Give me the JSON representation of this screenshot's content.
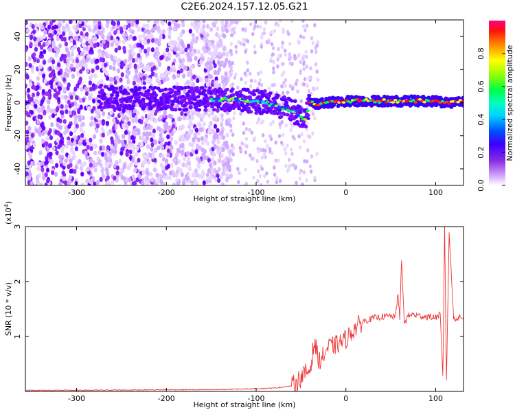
{
  "title": "C2E6.2024.157.12.05.G21",
  "chart_data": [
    {
      "type": "heatmap",
      "xlabel": "Height of straight line (km)",
      "ylabel": "Frequency (Hz)",
      "xlim": [
        -357,
        131
      ],
      "ylim": [
        -50,
        50
      ],
      "xticks": [
        -300,
        -200,
        -100,
        0,
        100
      ],
      "yticks": [
        -40,
        -20,
        0,
        20,
        40
      ],
      "colorbar": {
        "label": "Normalized spectral amplitude",
        "range": [
          0,
          1
        ],
        "ticks": [
          "0.0",
          "0.2",
          "0.4",
          "0.6",
          "0.8"
        ],
        "colormap": [
          "#ffffff",
          "#d9b3ff",
          "#8a2be2",
          "#6a00ff",
          "#0000ff",
          "#00bfff",
          "#00ffcc",
          "#00ff00",
          "#ffff00",
          "#ff8000",
          "#ff0000",
          "#ff0066"
        ]
      },
      "ridge": {
        "x": [
          -270,
          -250,
          -200,
          -160,
          -120,
          -90,
          -70,
          -55,
          -45,
          -40,
          -30,
          -20,
          0,
          50,
          100,
          115,
          131
        ],
        "frequency": [
          4,
          2,
          3,
          2,
          2,
          0,
          -3,
          -6,
          -10,
          0,
          -1,
          0,
          1,
          1,
          1,
          0,
          1
        ]
      }
    },
    {
      "type": "line",
      "xlabel": "Height of straight line (km)",
      "ylabel": "SNR (10 * v/v)",
      "y_scale_label": "(x10",
      "y_scale_exp": "4",
      "y_scale_close": ")",
      "xlim": [
        -357,
        131
      ],
      "ylim": [
        0,
        3
      ],
      "xticks": [
        -300,
        -200,
        -100,
        0,
        100
      ],
      "yticks": [
        1,
        2,
        3
      ],
      "color": "#ee3333",
      "series": [
        {
          "x": [
            -357,
            -300,
            -200,
            -150,
            -100,
            -80,
            -60,
            -50,
            -40,
            -35,
            -30,
            -25,
            -20,
            -10,
            0,
            10,
            20,
            30,
            40,
            50,
            55,
            58,
            60,
            62,
            65,
            70,
            75,
            80,
            90,
            100,
            105,
            108,
            110,
            112,
            115,
            120,
            131
          ],
          "y": [
            0.02,
            0.02,
            0.03,
            0.03,
            0.05,
            0.06,
            0.1,
            0.25,
            0.4,
            0.9,
            0.55,
            0.65,
            0.8,
            0.85,
            0.95,
            1.15,
            1.28,
            1.33,
            1.36,
            1.37,
            1.35,
            1.8,
            1.3,
            2.4,
            1.25,
            1.38,
            1.4,
            1.38,
            1.36,
            1.35,
            1.4,
            0.25,
            3.05,
            0.15,
            2.9,
            1.33,
            1.35
          ]
        }
      ]
    }
  ]
}
